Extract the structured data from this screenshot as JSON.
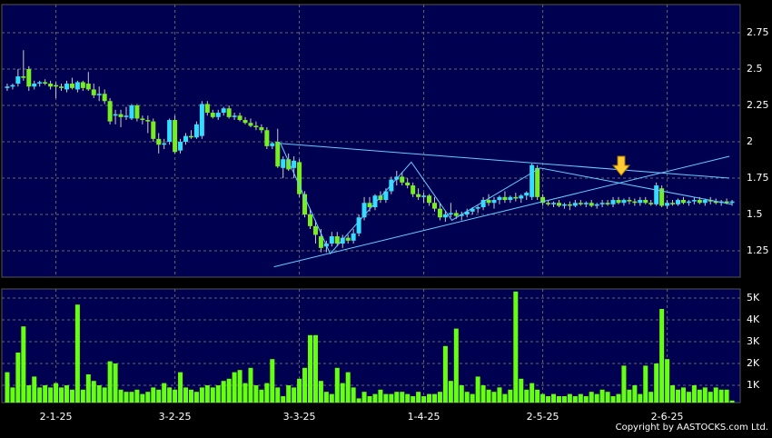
{
  "chart_data": {
    "type": "candlestick",
    "up_color": "#33ddff",
    "down_color": "#77ee22",
    "volume_color": "#66ff11",
    "trend_color": "#66ccff",
    "grid": true,
    "ylim": [
      1.069,
      2.944
    ],
    "yticks": [
      1.25,
      1.5,
      1.75,
      2,
      2.25,
      2.5,
      2.75
    ],
    "xlim": [
      -1,
      135.5
    ],
    "xticks": [
      {
        "value": 9,
        "label": "2-1-25"
      },
      {
        "value": 31,
        "label": "3-2-25"
      },
      {
        "value": 54,
        "label": "3-3-25"
      },
      {
        "value": 77,
        "label": "1-4-25"
      },
      {
        "value": 99,
        "label": "2-5-25"
      },
      {
        "value": 122,
        "label": "2-6-25"
      }
    ],
    "candles": [
      [
        2.37,
        2.4,
        2.35,
        2.38
      ],
      [
        2.38,
        2.4,
        2.36,
        2.39
      ],
      [
        2.4,
        2.5,
        2.38,
        2.45
      ],
      [
        2.45,
        2.63,
        2.42,
        2.44
      ],
      [
        2.5,
        2.52,
        2.35,
        2.38
      ],
      [
        2.38,
        2.42,
        2.36,
        2.4
      ],
      [
        2.4,
        2.42,
        2.38,
        2.41
      ],
      [
        2.41,
        2.43,
        2.39,
        2.4
      ],
      [
        2.4,
        2.42,
        2.36,
        2.38
      ],
      [
        2.39,
        2.41,
        2.3,
        2.38
      ],
      [
        2.38,
        2.4,
        2.35,
        2.37
      ],
      [
        2.36,
        2.42,
        2.34,
        2.4
      ],
      [
        2.4,
        2.44,
        2.36,
        2.37
      ],
      [
        2.36,
        2.42,
        2.34,
        2.41
      ],
      [
        2.41,
        2.42,
        2.35,
        2.37
      ],
      [
        2.4,
        2.48,
        2.35,
        2.36
      ],
      [
        2.36,
        2.4,
        2.3,
        2.32
      ],
      [
        2.32,
        2.38,
        2.28,
        2.33
      ],
      [
        2.33,
        2.36,
        2.26,
        2.28
      ],
      [
        2.28,
        2.3,
        2.12,
        2.14
      ],
      [
        2.18,
        2.22,
        2.12,
        2.19
      ],
      [
        2.19,
        2.22,
        2.1,
        2.17
      ],
      [
        2.17,
        2.24,
        2.15,
        2.18
      ],
      [
        2.16,
        2.26,
        2.15,
        2.25
      ],
      [
        2.25,
        2.26,
        2.14,
        2.16
      ],
      [
        2.16,
        2.18,
        2.12,
        2.15
      ],
      [
        2.15,
        2.18,
        2.06,
        2.14
      ],
      [
        2.14,
        2.16,
        2.0,
        2.02
      ],
      [
        2.02,
        2.06,
        1.92,
        1.98
      ],
      [
        1.98,
        2.02,
        1.95,
        1.99
      ],
      [
        2.0,
        2.16,
        1.98,
        2.15
      ],
      [
        2.15,
        2.18,
        1.92,
        1.93
      ],
      [
        1.94,
        2.02,
        1.92,
        2.0
      ],
      [
        2.0,
        2.06,
        1.98,
        2.04
      ],
      [
        2.04,
        2.08,
        2.02,
        2.03
      ],
      [
        2.03,
        2.14,
        2.02,
        2.12
      ],
      [
        2.04,
        2.28,
        2.02,
        2.26
      ],
      [
        2.26,
        2.28,
        2.18,
        2.2
      ],
      [
        2.2,
        2.22,
        2.16,
        2.17
      ],
      [
        2.17,
        2.22,
        2.15,
        2.2
      ],
      [
        2.2,
        2.24,
        2.18,
        2.23
      ],
      [
        2.23,
        2.25,
        2.16,
        2.17
      ],
      [
        2.17,
        2.2,
        2.15,
        2.18
      ],
      [
        2.18,
        2.2,
        2.14,
        2.15
      ],
      [
        2.15,
        2.17,
        2.12,
        2.13
      ],
      [
        2.13,
        2.16,
        2.1,
        2.11
      ],
      [
        2.11,
        2.14,
        2.08,
        2.1
      ],
      [
        2.1,
        2.12,
        2.06,
        2.08
      ],
      [
        2.08,
        2.1,
        1.95,
        1.97
      ],
      [
        1.97,
        2.0,
        1.95,
        1.99
      ],
      [
        2.0,
        2.09,
        1.82,
        1.83
      ],
      [
        1.82,
        1.9,
        1.75,
        1.88
      ],
      [
        1.88,
        1.92,
        1.8,
        1.81
      ],
      [
        1.82,
        1.9,
        1.75,
        1.87
      ],
      [
        1.86,
        1.88,
        1.62,
        1.64
      ],
      [
        1.64,
        1.66,
        1.48,
        1.5
      ],
      [
        1.5,
        1.54,
        1.4,
        1.42
      ],
      [
        1.42,
        1.46,
        1.3,
        1.36
      ],
      [
        1.35,
        1.4,
        1.24,
        1.27
      ],
      [
        1.28,
        1.32,
        1.24,
        1.3
      ],
      [
        1.3,
        1.38,
        1.28,
        1.35
      ],
      [
        1.35,
        1.38,
        1.28,
        1.3
      ],
      [
        1.3,
        1.36,
        1.27,
        1.34
      ],
      [
        1.34,
        1.36,
        1.3,
        1.32
      ],
      [
        1.32,
        1.4,
        1.3,
        1.37
      ],
      [
        1.37,
        1.5,
        1.35,
        1.48
      ],
      [
        1.48,
        1.62,
        1.46,
        1.58
      ],
      [
        1.58,
        1.62,
        1.52,
        1.55
      ],
      [
        1.55,
        1.64,
        1.53,
        1.63
      ],
      [
        1.63,
        1.66,
        1.58,
        1.6
      ],
      [
        1.6,
        1.68,
        1.58,
        1.66
      ],
      [
        1.66,
        1.76,
        1.64,
        1.74
      ],
      [
        1.74,
        1.8,
        1.7,
        1.76
      ],
      [
        1.76,
        1.79,
        1.7,
        1.72
      ],
      [
        1.72,
        1.75,
        1.68,
        1.7
      ],
      [
        1.7,
        1.72,
        1.62,
        1.64
      ],
      [
        1.64,
        1.68,
        1.6,
        1.62
      ],
      [
        1.62,
        1.65,
        1.58,
        1.63
      ],
      [
        1.63,
        1.64,
        1.56,
        1.58
      ],
      [
        1.58,
        1.62,
        1.52,
        1.54
      ],
      [
        1.54,
        1.58,
        1.46,
        1.48
      ],
      [
        1.48,
        1.52,
        1.45,
        1.5
      ],
      [
        1.5,
        1.58,
        1.48,
        1.51
      ],
      [
        1.51,
        1.53,
        1.47,
        1.49
      ],
      [
        1.49,
        1.52,
        1.46,
        1.5
      ],
      [
        1.5,
        1.54,
        1.48,
        1.52
      ],
      [
        1.52,
        1.55,
        1.5,
        1.54
      ],
      [
        1.54,
        1.56,
        1.51,
        1.55
      ],
      [
        1.55,
        1.62,
        1.53,
        1.6
      ],
      [
        1.6,
        1.64,
        1.56,
        1.58
      ],
      [
        1.58,
        1.62,
        1.54,
        1.6
      ],
      [
        1.6,
        1.63,
        1.57,
        1.62
      ],
      [
        1.62,
        1.66,
        1.58,
        1.6
      ],
      [
        1.6,
        1.63,
        1.58,
        1.62
      ],
      [
        1.62,
        1.65,
        1.59,
        1.61
      ],
      [
        1.61,
        1.64,
        1.58,
        1.63
      ],
      [
        1.63,
        1.66,
        1.6,
        1.65
      ],
      [
        1.62,
        1.85,
        1.6,
        1.84
      ],
      [
        1.82,
        1.84,
        1.6,
        1.62
      ],
      [
        1.62,
        1.64,
        1.56,
        1.58
      ],
      [
        1.58,
        1.6,
        1.56,
        1.57
      ],
      [
        1.57,
        1.59,
        1.55,
        1.58
      ],
      [
        1.58,
        1.6,
        1.55,
        1.56
      ],
      [
        1.56,
        1.58,
        1.54,
        1.57
      ],
      [
        1.57,
        1.59,
        1.53,
        1.56
      ],
      [
        1.56,
        1.6,
        1.55,
        1.58
      ],
      [
        1.58,
        1.6,
        1.56,
        1.57
      ],
      [
        1.57,
        1.59,
        1.55,
        1.58
      ],
      [
        1.58,
        1.6,
        1.55,
        1.56
      ],
      [
        1.56,
        1.58,
        1.54,
        1.57
      ],
      [
        1.57,
        1.6,
        1.55,
        1.58
      ],
      [
        1.58,
        1.6,
        1.56,
        1.57
      ],
      [
        1.57,
        1.62,
        1.55,
        1.6
      ],
      [
        1.6,
        1.62,
        1.57,
        1.58
      ],
      [
        1.58,
        1.61,
        1.56,
        1.6
      ],
      [
        1.6,
        1.62,
        1.57,
        1.59
      ],
      [
        1.59,
        1.61,
        1.56,
        1.58
      ],
      [
        1.58,
        1.62,
        1.56,
        1.6
      ],
      [
        1.6,
        1.62,
        1.57,
        1.58
      ],
      [
        1.58,
        1.6,
        1.56,
        1.57
      ],
      [
        1.57,
        1.72,
        1.56,
        1.7
      ],
      [
        1.68,
        1.7,
        1.55,
        1.56
      ],
      [
        1.56,
        1.6,
        1.54,
        1.58
      ],
      [
        1.58,
        1.6,
        1.56,
        1.57
      ],
      [
        1.57,
        1.61,
        1.56,
        1.6
      ],
      [
        1.6,
        1.62,
        1.57,
        1.58
      ],
      [
        1.58,
        1.6,
        1.56,
        1.59
      ],
      [
        1.59,
        1.62,
        1.57,
        1.6
      ],
      [
        1.6,
        1.62,
        1.57,
        1.58
      ],
      [
        1.58,
        1.61,
        1.56,
        1.6
      ],
      [
        1.6,
        1.62,
        1.57,
        1.59
      ],
      [
        1.59,
        1.61,
        1.57,
        1.58
      ],
      [
        1.58,
        1.6,
        1.56,
        1.59
      ],
      [
        1.59,
        1.61,
        1.57,
        1.58
      ],
      [
        1.58,
        1.6,
        1.56,
        1.59
      ]
    ],
    "trend_lines": [
      {
        "x": [
          50,
          133.5
        ],
        "y": [
          1.99,
          1.75
        ]
      },
      {
        "x": [
          49.3,
          133.5
        ],
        "y": [
          1.14,
          1.9
        ]
      },
      {
        "x": [
          50.5,
          59.7,
          74.7,
          82.2,
          98.5,
          134
        ],
        "y": [
          1.99,
          1.23,
          1.86,
          1.46,
          1.82,
          1.57
        ]
      }
    ],
    "volume": {
      "ylim": [
        208,
        5417
      ],
      "yticks": [
        {
          "value": 1000,
          "label": "1K"
        },
        {
          "value": 2000,
          "label": "2K"
        },
        {
          "value": 3000,
          "label": "3K"
        },
        {
          "value": 4000,
          "label": "4K"
        },
        {
          "value": 5000,
          "label": "5K"
        }
      ],
      "values": [
        1600,
        900,
        2500,
        3700,
        1000,
        1400,
        900,
        1000,
        900,
        1100,
        900,
        1000,
        800,
        4700,
        800,
        1500,
        1200,
        1000,
        900,
        2100,
        2000,
        800,
        700,
        700,
        800,
        600,
        700,
        900,
        800,
        1100,
        900,
        800,
        1600,
        900,
        800,
        700,
        900,
        1000,
        900,
        1000,
        1200,
        1300,
        1600,
        1700,
        1100,
        1800,
        1000,
        800,
        1100,
        2200,
        900,
        500,
        1000,
        900,
        1300,
        1800,
        3300,
        3300,
        1200,
        700,
        600,
        1800,
        1100,
        1600,
        900,
        400,
        700,
        500,
        600,
        800,
        600,
        600,
        700,
        700,
        600,
        500,
        700,
        500,
        600,
        600,
        700,
        2800,
        1200,
        3600,
        1000,
        700,
        600,
        1400,
        1000,
        800,
        700,
        900,
        600,
        800,
        5300,
        1300,
        800,
        1100,
        800,
        600,
        500,
        600,
        500,
        500,
        600,
        500,
        600,
        500,
        700,
        600,
        800,
        700,
        500,
        600,
        1900,
        800,
        1000,
        600,
        1900,
        700,
        2000,
        4500,
        2200,
        1000,
        800,
        900,
        700,
        1000,
        800,
        900,
        700,
        900,
        800,
        800,
        300
      ]
    },
    "source": "Copyright by AASTOCKS.com Ltd."
  }
}
